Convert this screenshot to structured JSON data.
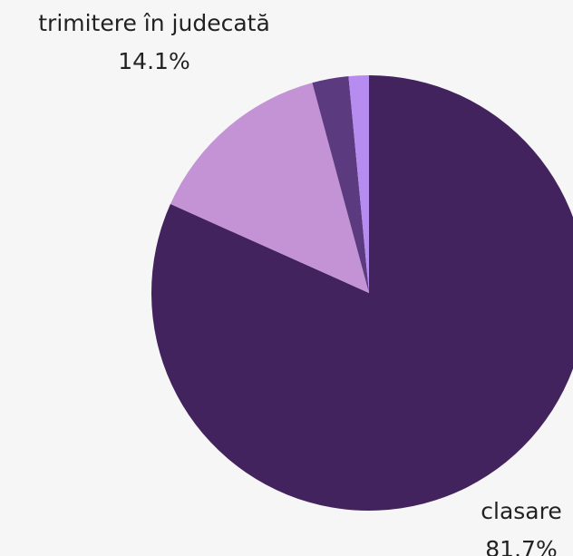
{
  "chart_data": {
    "type": "pie",
    "categories": [
      "clasare",
      "trimitere în judecată",
      null,
      null
    ],
    "values": [
      81.7,
      14.1,
      2.7,
      1.5
    ],
    "value_labels": [
      "81.7%",
      "14.1%",
      null,
      null
    ],
    "colors": [
      "#42235e",
      "#c393d5",
      "#5b3a80",
      "#b68cf0"
    ]
  }
}
